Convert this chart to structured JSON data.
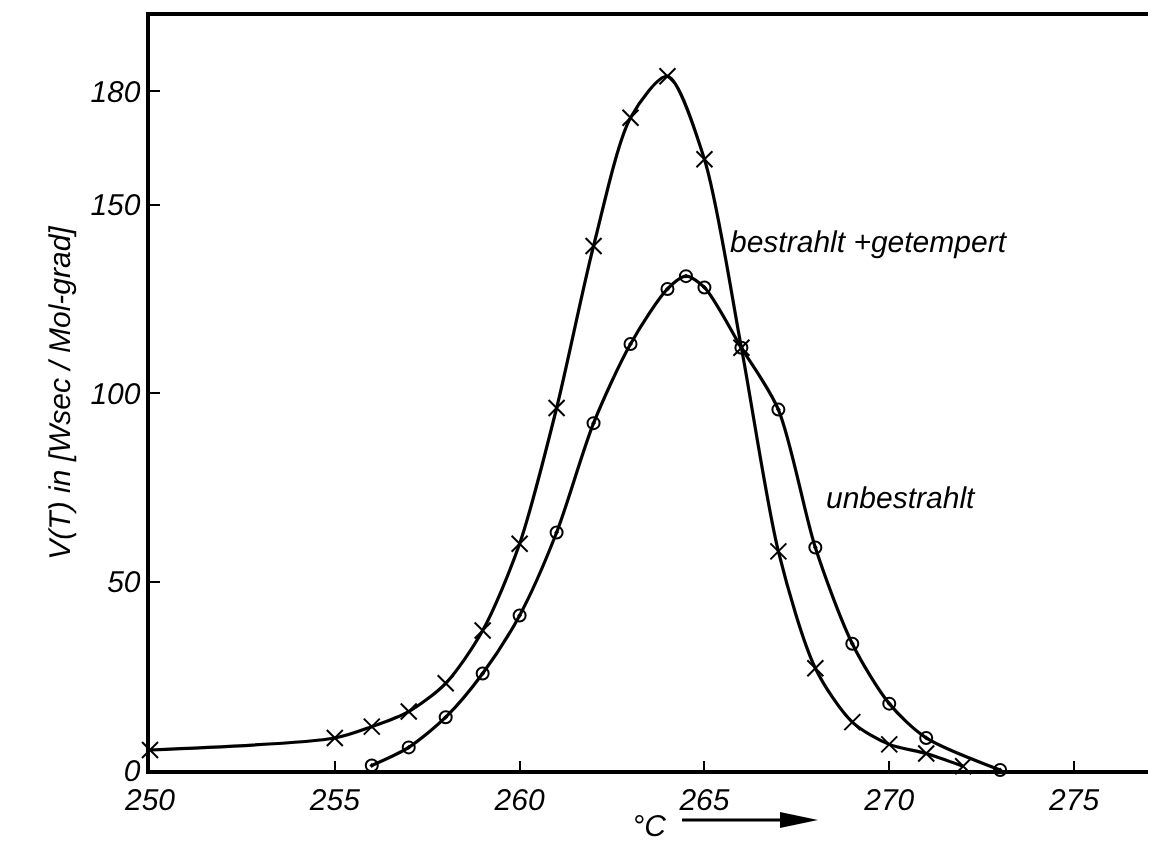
{
  "chart_data": {
    "type": "line",
    "xlabel": "°C",
    "ylabel": "V(T) in [Wsec / Mol-grad]",
    "xlim": [
      250,
      277
    ],
    "ylim": [
      0,
      200
    ],
    "xticks": [
      250,
      255,
      260,
      265,
      270,
      275
    ],
    "yticks": [
      0,
      50,
      100,
      150,
      180
    ],
    "grid": false,
    "legend": false,
    "line_style": "solid",
    "series": [
      {
        "name": "bestrahlt +getempert",
        "color": "#000000",
        "marker": "cross",
        "x": [
          250,
          255,
          256,
          257,
          258,
          259,
          260,
          261,
          262,
          263,
          264,
          265,
          266,
          267,
          268,
          269,
          270,
          271,
          272
        ],
        "values": [
          5.3,
          8.5,
          11.5,
          15.5,
          23,
          37,
          60,
          96,
          139,
          173,
          184,
          162,
          112,
          58,
          27,
          12.7,
          6.8,
          4.4,
          1
        ]
      },
      {
        "name": "unbestrahlt",
        "color": "#000000",
        "marker": "circle",
        "x": [
          256,
          257,
          258,
          259,
          260,
          261,
          262,
          263,
          264,
          264.5,
          265,
          266,
          267,
          268,
          269,
          270,
          271,
          273
        ],
        "values": [
          1.2,
          6,
          14,
          25.6,
          41,
          63,
          92,
          113,
          127.6,
          131,
          128,
          112,
          95.6,
          59,
          33.5,
          17.6,
          8.5,
          0
        ]
      }
    ]
  }
}
